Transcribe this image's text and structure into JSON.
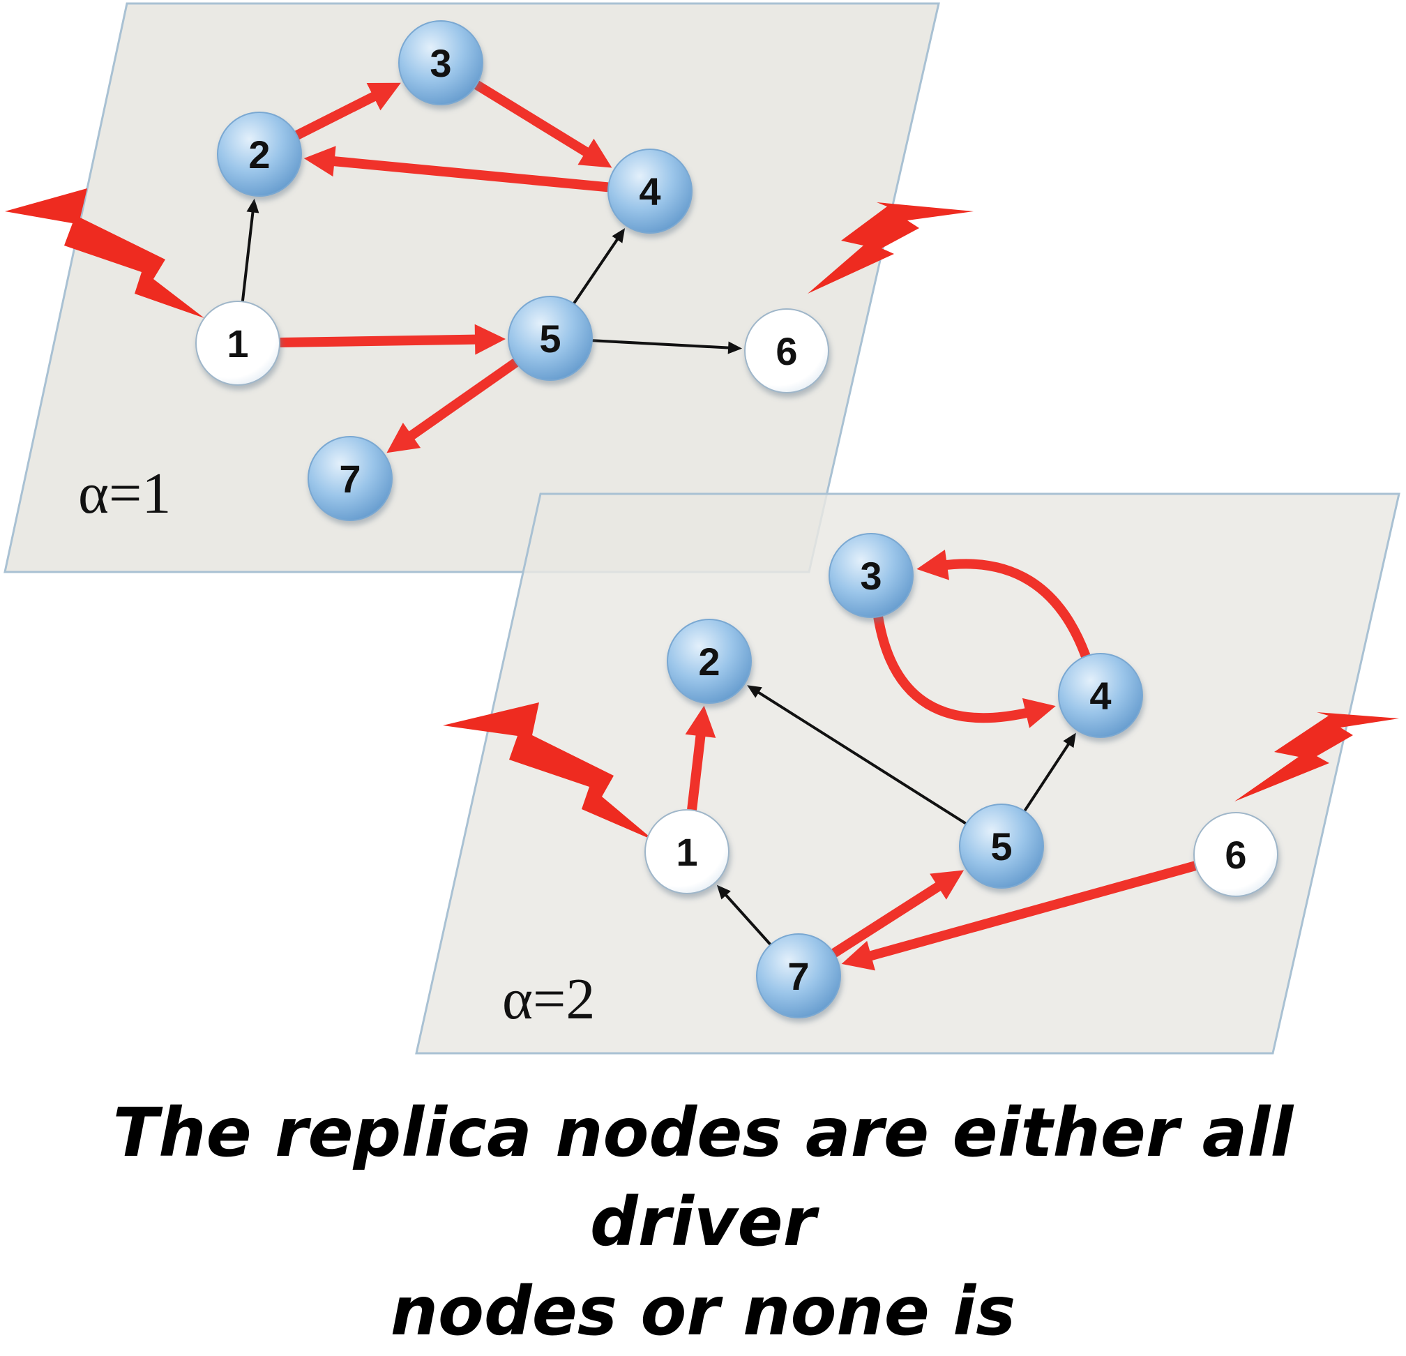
{
  "colors": {
    "plane_fill": "#e9e8e3",
    "plane_stroke": "#a9c1d3",
    "driver_node": "#8fbce6",
    "regular_node": "#ffffff",
    "strong_edge": "#f0322a",
    "weak_edge": "#111111",
    "lightning": "#ee2b20"
  },
  "layers": [
    {
      "id": "alpha1",
      "label": "α=1",
      "nodes": [
        {
          "id": "1",
          "label": "1",
          "type": "regular"
        },
        {
          "id": "2",
          "label": "2",
          "type": "driver"
        },
        {
          "id": "3",
          "label": "3",
          "type": "driver"
        },
        {
          "id": "4",
          "label": "4",
          "type": "driver"
        },
        {
          "id": "5",
          "label": "5",
          "type": "driver"
        },
        {
          "id": "6",
          "label": "6",
          "type": "regular"
        },
        {
          "id": "7",
          "label": "7",
          "type": "driver"
        }
      ],
      "edges": [
        {
          "from": "2",
          "to": "3",
          "style": "strong"
        },
        {
          "from": "3",
          "to": "4",
          "style": "strong"
        },
        {
          "from": "4",
          "to": "2",
          "style": "strong"
        },
        {
          "from": "1",
          "to": "5",
          "style": "strong"
        },
        {
          "from": "5",
          "to": "7",
          "style": "strong"
        },
        {
          "from": "1",
          "to": "2",
          "style": "weak"
        },
        {
          "from": "5",
          "to": "4",
          "style": "weak"
        },
        {
          "from": "5",
          "to": "6",
          "style": "weak"
        }
      ]
    },
    {
      "id": "alpha2",
      "label": "α=2",
      "nodes": [
        {
          "id": "1",
          "label": "1",
          "type": "regular"
        },
        {
          "id": "2",
          "label": "2",
          "type": "driver"
        },
        {
          "id": "3",
          "label": "3",
          "type": "driver"
        },
        {
          "id": "4",
          "label": "4",
          "type": "driver"
        },
        {
          "id": "5",
          "label": "5",
          "type": "driver"
        },
        {
          "id": "6",
          "label": "6",
          "type": "regular"
        },
        {
          "id": "7",
          "label": "7",
          "type": "driver"
        }
      ],
      "edges": [
        {
          "from": "1",
          "to": "2",
          "style": "strong"
        },
        {
          "from": "3",
          "to": "4",
          "style": "strong"
        },
        {
          "from": "4",
          "to": "3",
          "style": "strong"
        },
        {
          "from": "7",
          "to": "5",
          "style": "strong"
        },
        {
          "from": "6",
          "to": "7",
          "style": "strong"
        },
        {
          "from": "5",
          "to": "2",
          "style": "weak"
        },
        {
          "from": "5",
          "to": "4",
          "style": "weak"
        },
        {
          "from": "7",
          "to": "1",
          "style": "weak"
        }
      ]
    }
  ],
  "caption": {
    "line1": "The replica nodes are either all driver",
    "line2": "nodes or none is"
  }
}
